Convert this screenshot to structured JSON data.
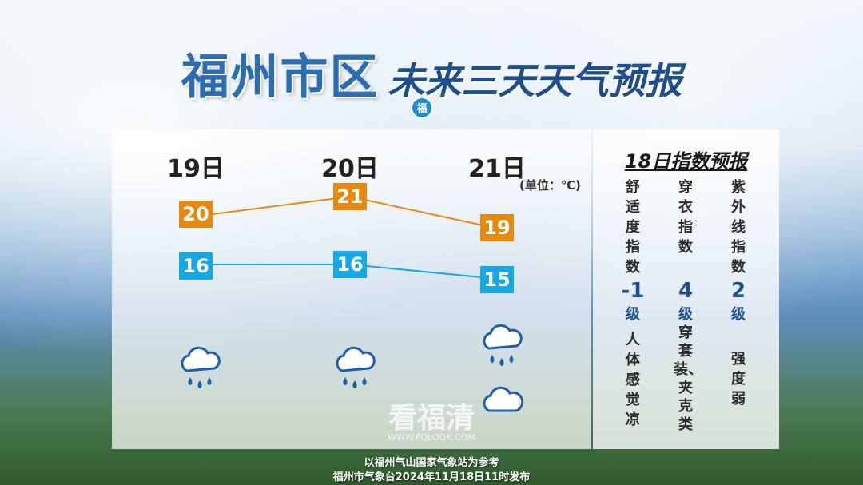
{
  "title": {
    "main": "福州市区",
    "sub": "未来三天天气预报"
  },
  "logo_char": "福",
  "unit_label": "(单位：℃)",
  "days": [
    {
      "label": "19日",
      "high": "20",
      "low": "16",
      "weather_icons": [
        "rain-cloud-icon"
      ]
    },
    {
      "label": "20日",
      "high": "21",
      "low": "16",
      "weather_icons": [
        "rain-cloud-icon"
      ]
    },
    {
      "label": "21日",
      "high": "19",
      "low": "15",
      "weather_icons": [
        "rain-cloud-icon",
        "cloud-icon"
      ]
    }
  ],
  "colors": {
    "high": "#e58a0e",
    "low": "#16a7e6",
    "title": "#2b6db0"
  },
  "index_panel": {
    "title": "18日指数预报",
    "items": [
      {
        "name": "舒适度指数",
        "level": "-1",
        "level_unit": "级",
        "desc": "人体感觉凉"
      },
      {
        "name": "穿衣指数",
        "level": "4",
        "level_unit": "级",
        "desc": "穿套装、夹克类"
      },
      {
        "name": "紫外线指数",
        "level": "2",
        "level_unit": "级",
        "desc": "强度  弱"
      }
    ]
  },
  "watermark": {
    "text": "看福清",
    "url": "WWW.FQLOOK.COM"
  },
  "footer": {
    "line1": "以福州气山国家气象站为参考",
    "line2": "福州市气象台2024年11月18日11时发布"
  }
}
